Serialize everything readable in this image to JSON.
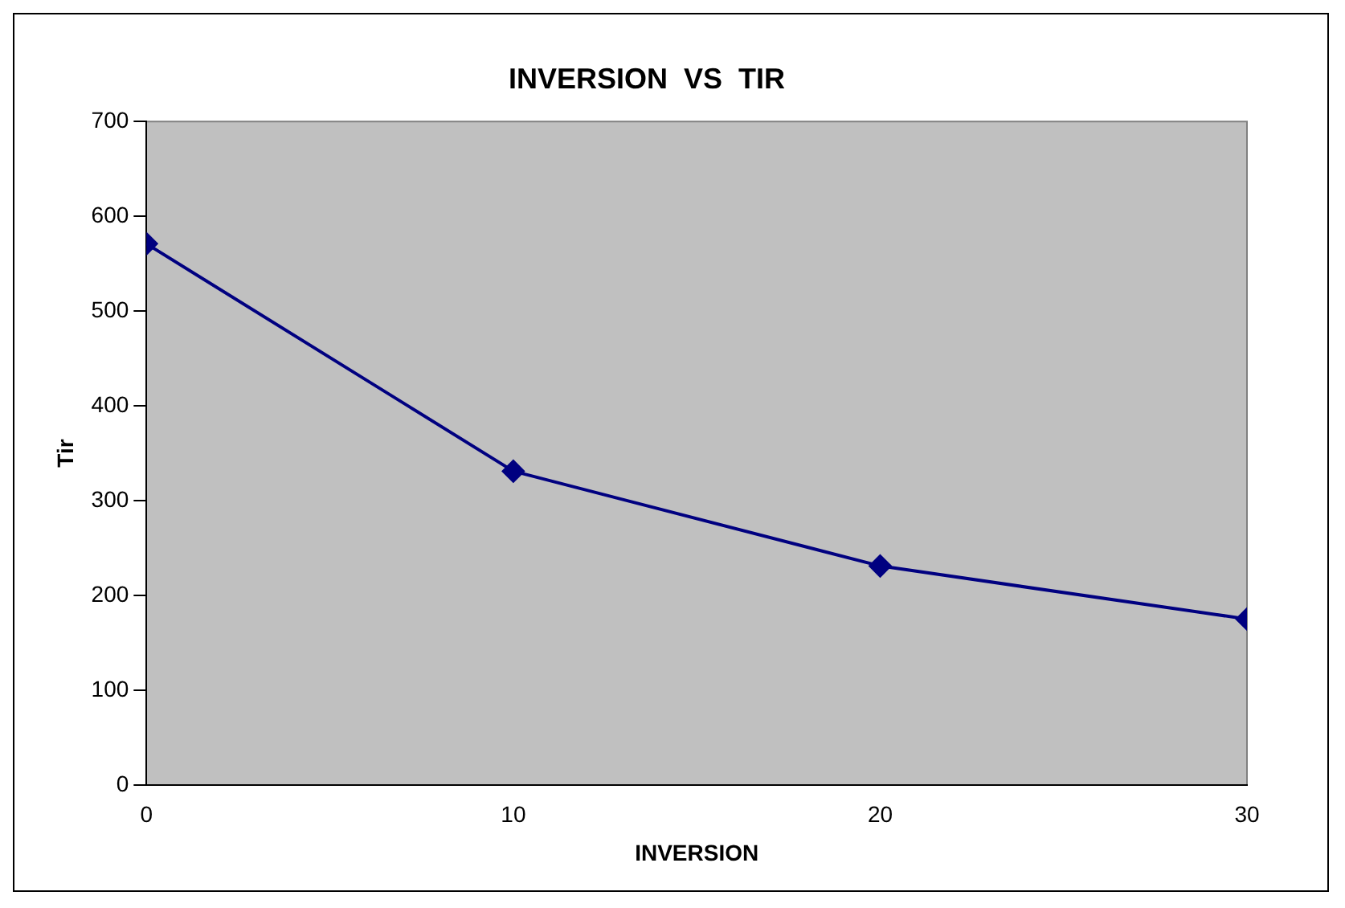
{
  "chart_data": {
    "type": "line",
    "title": "INVERSION  VS  TIR",
    "xlabel": "INVERSION",
    "ylabel": "Tir",
    "x": [
      0,
      10,
      20,
      30
    ],
    "series": [
      {
        "color": "#000080",
        "values": [
          571,
          331,
          231,
          175
        ]
      }
    ],
    "xlim": [
      0,
      30
    ],
    "xticks": [
      0,
      10,
      20,
      30
    ],
    "ylim": [
      0,
      700
    ],
    "yticks": [
      0,
      100,
      200,
      300,
      400,
      500,
      600,
      700
    ],
    "grid": false,
    "legend": false,
    "marker": "diamond",
    "line_style": "solid"
  }
}
